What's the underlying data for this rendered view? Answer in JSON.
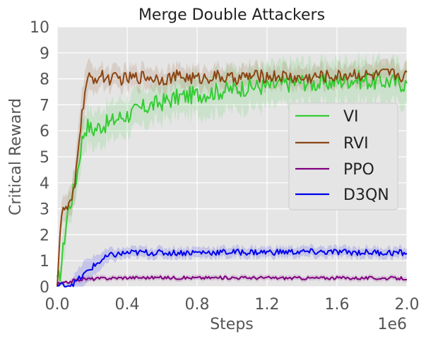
{
  "chart_data": {
    "type": "line",
    "title": "Merge Double Attackers",
    "xlabel": "Steps",
    "ylabel": "Critical Reward",
    "x_offset_label": "1e6",
    "xlim": [
      0,
      2.0
    ],
    "ylim": [
      0,
      10
    ],
    "x_ticks": [
      "0.0",
      "0.4",
      "0.8",
      "1.2",
      "1.6",
      "2.0"
    ],
    "y_ticks": [
      "0",
      "1",
      "2",
      "3",
      "4",
      "5",
      "6",
      "7",
      "8",
      "9",
      "10"
    ],
    "grid": true,
    "legend_position": "right",
    "series": [
      {
        "name": "VI",
        "color": "#33cc33",
        "x": [
          0.0,
          0.02,
          0.04,
          0.06,
          0.08,
          0.1,
          0.12,
          0.14,
          0.16,
          0.18,
          0.2,
          0.25,
          0.3,
          0.35,
          0.4,
          0.5,
          0.6,
          0.7,
          0.8,
          0.9,
          1.0,
          1.1,
          1.2,
          1.3,
          1.4,
          1.5,
          1.6,
          1.7,
          1.8,
          1.9,
          2.0
        ],
        "y": [
          0.1,
          0.6,
          1.8,
          2.9,
          3.3,
          3.9,
          4.6,
          5.6,
          6.1,
          6.2,
          6.0,
          6.2,
          6.3,
          6.5,
          6.6,
          6.9,
          7.1,
          7.3,
          7.4,
          7.5,
          7.6,
          7.7,
          7.7,
          7.8,
          7.9,
          7.8,
          7.9,
          8.0,
          7.9,
          7.9,
          7.8
        ],
        "band": [
          0.5,
          0.5,
          0.6,
          0.6,
          0.6,
          0.6,
          0.6,
          0.7,
          0.7,
          0.7,
          0.7,
          0.7,
          0.7,
          0.7,
          0.7,
          0.7,
          0.7,
          0.7,
          0.8,
          0.8,
          0.8,
          0.8,
          0.8,
          0.8,
          0.8,
          0.8,
          0.8,
          0.8,
          0.8,
          0.8,
          0.8
        ]
      },
      {
        "name": "RVI",
        "color": "#8b4513",
        "x": [
          0.0,
          0.02,
          0.04,
          0.06,
          0.08,
          0.1,
          0.12,
          0.14,
          0.16,
          0.18,
          0.2,
          0.25,
          0.3,
          0.35,
          0.4,
          0.5,
          0.6,
          0.7,
          0.8,
          0.9,
          1.0,
          1.1,
          1.2,
          1.3,
          1.4,
          1.5,
          1.6,
          1.7,
          1.8,
          1.9,
          2.0
        ],
        "y": [
          0.1,
          2.6,
          3.0,
          3.0,
          3.2,
          3.8,
          5.5,
          6.5,
          7.6,
          8.0,
          8.0,
          8.1,
          8.0,
          8.0,
          8.0,
          8.1,
          8.0,
          8.1,
          8.0,
          8.1,
          8.0,
          8.1,
          8.1,
          8.1,
          8.0,
          8.1,
          8.1,
          8.2,
          8.1,
          8.2,
          8.1
        ],
        "band": [
          0.3,
          0.5,
          0.5,
          0.5,
          0.6,
          0.7,
          0.9,
          0.9,
          0.8,
          0.6,
          0.5,
          0.4,
          0.4,
          0.4,
          0.4,
          0.4,
          0.4,
          0.4,
          0.4,
          0.4,
          0.4,
          0.4,
          0.4,
          0.4,
          0.4,
          0.4,
          0.4,
          0.4,
          0.4,
          0.4,
          0.4
        ]
      },
      {
        "name": "PPO",
        "color": "#800080",
        "x": [
          0.0,
          0.05,
          0.1,
          0.15,
          0.2,
          0.3,
          0.4,
          0.6,
          0.8,
          1.0,
          1.2,
          1.4,
          1.6,
          1.8,
          2.0
        ],
        "y": [
          0.1,
          0.15,
          0.25,
          0.3,
          0.3,
          0.33,
          0.35,
          0.35,
          0.34,
          0.35,
          0.34,
          0.33,
          0.34,
          0.33,
          0.32
        ],
        "band": [
          0.05,
          0.05,
          0.1,
          0.1,
          0.1,
          0.1,
          0.1,
          0.1,
          0.1,
          0.1,
          0.1,
          0.1,
          0.1,
          0.1,
          0.1
        ]
      },
      {
        "name": "D3QN",
        "color": "#0000ee",
        "x": [
          0.0,
          0.05,
          0.1,
          0.15,
          0.2,
          0.25,
          0.3,
          0.35,
          0.4,
          0.5,
          0.6,
          0.8,
          1.0,
          1.2,
          1.4,
          1.6,
          1.8,
          2.0
        ],
        "y": [
          0.05,
          0.05,
          0.15,
          0.45,
          0.75,
          1.0,
          1.2,
          1.25,
          1.3,
          1.32,
          1.3,
          1.32,
          1.33,
          1.33,
          1.34,
          1.33,
          1.32,
          1.3
        ],
        "band": [
          0.05,
          0.1,
          0.3,
          0.5,
          0.4,
          0.3,
          0.25,
          0.2,
          0.2,
          0.2,
          0.2,
          0.2,
          0.2,
          0.2,
          0.2,
          0.2,
          0.2,
          0.2
        ]
      }
    ]
  }
}
